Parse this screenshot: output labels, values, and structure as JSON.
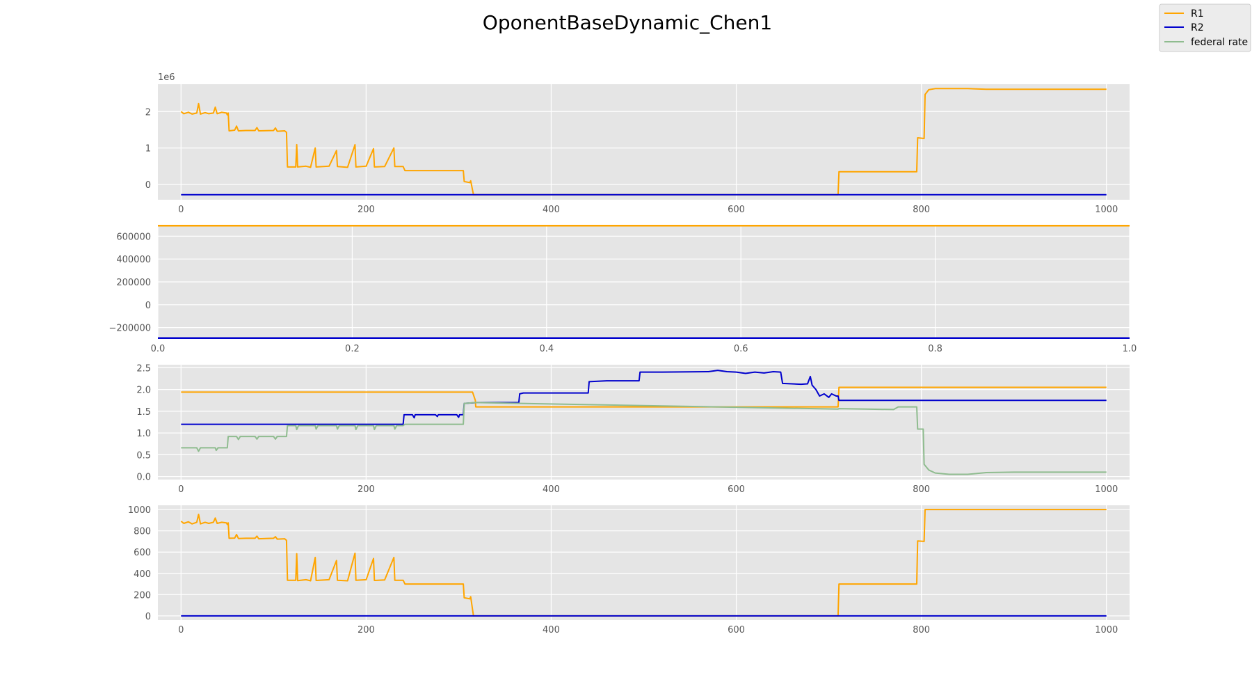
{
  "title": "OponentBaseDynamic_Chen1",
  "legend": [
    {
      "label": "R1",
      "color": "#ffa500"
    },
    {
      "label": "R2",
      "color": "#0000cd"
    },
    {
      "label": "federal rate",
      "color": "#8fbc8f"
    }
  ],
  "chart_data": [
    {
      "type": "line",
      "title": "",
      "offset_label": "1e6",
      "xlim": [
        -25,
        1025
      ],
      "ylim": [
        -0.42,
        2.75
      ],
      "xticks": [
        0,
        200,
        400,
        600,
        800,
        1000
      ],
      "yticks": [
        0,
        1,
        2
      ],
      "series": [
        {
          "name": "R1",
          "color": "#ffa500",
          "points": [
            [
              0,
              2.0
            ],
            [
              3,
              1.94
            ],
            [
              8,
              1.98
            ],
            [
              12,
              1.93
            ],
            [
              17,
              1.96
            ],
            [
              19,
              2.22
            ],
            [
              21,
              1.93
            ],
            [
              26,
              1.97
            ],
            [
              30,
              1.94
            ],
            [
              35,
              1.96
            ],
            [
              37,
              2.12
            ],
            [
              39,
              1.94
            ],
            [
              44,
              1.98
            ],
            [
              49,
              1.96
            ],
            [
              50,
              1.91
            ],
            [
              51,
              1.96
            ],
            [
              52,
              1.47
            ],
            [
              58,
              1.49
            ],
            [
              60,
              1.6
            ],
            [
              62,
              1.47
            ],
            [
              70,
              1.48
            ],
            [
              80,
              1.48
            ],
            [
              82,
              1.56
            ],
            [
              84,
              1.47
            ],
            [
              100,
              1.48
            ],
            [
              102,
              1.55
            ],
            [
              104,
              1.46
            ],
            [
              112,
              1.47
            ],
            [
              114,
              1.43
            ],
            [
              115,
              0.48
            ],
            [
              124,
              0.48
            ],
            [
              125,
              1.09
            ],
            [
              126,
              0.48
            ],
            [
              135,
              0.5
            ],
            [
              140,
              0.47
            ],
            [
              145,
              1.0
            ],
            [
              146,
              0.48
            ],
            [
              160,
              0.5
            ],
            [
              168,
              0.93
            ],
            [
              169,
              0.49
            ],
            [
              180,
              0.47
            ],
            [
              188,
              1.09
            ],
            [
              189,
              0.48
            ],
            [
              200,
              0.5
            ],
            [
              208,
              0.98
            ],
            [
              209,
              0.48
            ],
            [
              220,
              0.49
            ],
            [
              230,
              1.0
            ],
            [
              231,
              0.49
            ],
            [
              240,
              0.49
            ],
            [
              242,
              0.38
            ],
            [
              305,
              0.38
            ],
            [
              306,
              0.08
            ],
            [
              312,
              0.05
            ],
            [
              313,
              0.1
            ],
            [
              316,
              -0.28
            ],
            [
              710,
              -0.28
            ],
            [
              711,
              0.35
            ],
            [
              795,
              0.35
            ],
            [
              796,
              1.28
            ],
            [
              803,
              1.26
            ],
            [
              804,
              2.47
            ],
            [
              808,
              2.6
            ],
            [
              815,
              2.63
            ],
            [
              850,
              2.63
            ],
            [
              870,
              2.61
            ],
            [
              900,
              2.61
            ],
            [
              1000,
              2.61
            ]
          ]
        },
        {
          "name": "R2",
          "color": "#0000cd",
          "points": [
            [
              0,
              -0.28
            ],
            [
              1000,
              -0.28
            ]
          ]
        }
      ]
    },
    {
      "type": "line",
      "title": "",
      "xlim": [
        0,
        1
      ],
      "ylim": [
        -300000,
        700000
      ],
      "xticks": [
        0.0,
        0.2,
        0.4,
        0.6,
        0.8,
        1.0
      ],
      "yticks": [
        -200000,
        0,
        200000,
        400000,
        600000
      ],
      "ytick_labels": [
        "−200000",
        "0",
        "200000",
        "400000",
        "600000"
      ],
      "series": [
        {
          "name": "R1",
          "color": "#ffa500",
          "points": [
            [
              0,
              700000
            ],
            [
              1,
              700000
            ]
          ]
        },
        {
          "name": "R2",
          "color": "#0000cd",
          "points": [
            [
              0,
              -300000
            ],
            [
              1,
              -300000
            ]
          ]
        }
      ]
    },
    {
      "type": "line",
      "title": "",
      "xlim": [
        -25,
        1025
      ],
      "ylim": [
        -0.07,
        2.57
      ],
      "xticks": [
        0,
        200,
        400,
        600,
        800,
        1000
      ],
      "yticks": [
        0.0,
        0.5,
        1.0,
        1.5,
        2.0,
        2.5
      ],
      "series": [
        {
          "name": "R1",
          "color": "#ffa500",
          "points": [
            [
              0,
              1.94
            ],
            [
              315,
              1.94
            ],
            [
              318,
              1.75
            ],
            [
              318.5,
              1.6
            ],
            [
              710,
              1.6
            ],
            [
              711,
              2.05
            ],
            [
              1000,
              2.05
            ]
          ]
        },
        {
          "name": "R2",
          "color": "#0000cd",
          "points": [
            [
              0,
              1.2
            ],
            [
              240,
              1.2
            ],
            [
              241,
              1.42
            ],
            [
              250,
              1.42
            ],
            [
              252,
              1.35
            ],
            [
              253,
              1.42
            ],
            [
              275,
              1.42
            ],
            [
              277,
              1.38
            ],
            [
              278,
              1.42
            ],
            [
              298,
              1.42
            ],
            [
              300,
              1.36
            ],
            [
              301,
              1.42
            ],
            [
              305,
              1.42
            ],
            [
              306,
              1.68
            ],
            [
              320,
              1.7
            ],
            [
              365,
              1.7
            ],
            [
              366,
              1.9
            ],
            [
              370,
              1.92
            ],
            [
              440,
              1.92
            ],
            [
              441,
              2.18
            ],
            [
              460,
              2.2
            ],
            [
              495,
              2.2
            ],
            [
              496,
              2.4
            ],
            [
              520,
              2.4
            ],
            [
              570,
              2.41
            ],
            [
              580,
              2.44
            ],
            [
              590,
              2.41
            ],
            [
              600,
              2.4
            ],
            [
              610,
              2.37
            ],
            [
              620,
              2.4
            ],
            [
              630,
              2.38
            ],
            [
              640,
              2.41
            ],
            [
              648,
              2.4
            ],
            [
              650,
              2.14
            ],
            [
              670,
              2.12
            ],
            [
              677,
              2.13
            ],
            [
              680,
              2.3
            ],
            [
              682,
              2.1
            ],
            [
              686,
              2.0
            ],
            [
              690,
              1.85
            ],
            [
              695,
              1.9
            ],
            [
              700,
              1.82
            ],
            [
              703,
              1.9
            ],
            [
              708,
              1.85
            ],
            [
              710,
              1.85
            ],
            [
              711,
              1.75
            ],
            [
              1000,
              1.75
            ]
          ]
        },
        {
          "name": "federal rate",
          "color": "#8fbc8f",
          "points": [
            [
              0,
              0.66
            ],
            [
              17,
              0.66
            ],
            [
              19,
              0.58
            ],
            [
              21,
              0.66
            ],
            [
              37,
              0.66
            ],
            [
              38,
              0.6
            ],
            [
              40,
              0.66
            ],
            [
              50,
              0.66
            ],
            [
              51,
              0.92
            ],
            [
              60,
              0.92
            ],
            [
              62,
              0.85
            ],
            [
              64,
              0.92
            ],
            [
              80,
              0.92
            ],
            [
              82,
              0.86
            ],
            [
              84,
              0.92
            ],
            [
              100,
              0.92
            ],
            [
              102,
              0.86
            ],
            [
              104,
              0.92
            ],
            [
              114,
              0.92
            ],
            [
              115,
              1.17
            ],
            [
              124,
              1.17
            ],
            [
              125,
              1.08
            ],
            [
              127,
              1.17
            ],
            [
              145,
              1.17
            ],
            [
              146,
              1.09
            ],
            [
              148,
              1.17
            ],
            [
              168,
              1.17
            ],
            [
              169,
              1.09
            ],
            [
              171,
              1.17
            ],
            [
              188,
              1.17
            ],
            [
              189,
              1.08
            ],
            [
              191,
              1.17
            ],
            [
              208,
              1.17
            ],
            [
              209,
              1.08
            ],
            [
              211,
              1.17
            ],
            [
              230,
              1.17
            ],
            [
              231,
              1.09
            ],
            [
              233,
              1.17
            ],
            [
              240,
              1.17
            ],
            [
              242,
              1.2
            ],
            [
              305,
              1.2
            ],
            [
              306,
              1.68
            ],
            [
              318,
              1.7
            ],
            [
              710,
              1.55
            ],
            [
              711,
              1.56
            ],
            [
              740,
              1.55
            ],
            [
              770,
              1.54
            ],
            [
              775,
              1.6
            ],
            [
              795,
              1.6
            ],
            [
              796,
              1.09
            ],
            [
              802,
              1.09
            ],
            [
              803,
              0.28
            ],
            [
              808,
              0.15
            ],
            [
              815,
              0.08
            ],
            [
              830,
              0.05
            ],
            [
              850,
              0.05
            ],
            [
              870,
              0.09
            ],
            [
              900,
              0.1
            ],
            [
              950,
              0.1
            ],
            [
              1000,
              0.1
            ]
          ]
        }
      ]
    },
    {
      "type": "line",
      "title": "",
      "xlim": [
        -25,
        1025
      ],
      "ylim": [
        -40,
        1040
      ],
      "xticks": [
        0,
        200,
        400,
        600,
        800,
        1000
      ],
      "yticks": [
        0,
        200,
        400,
        600,
        800,
        1000
      ],
      "series": [
        {
          "name": "R1",
          "color": "#ffa500",
          "points": [
            [
              0,
              890
            ],
            [
              3,
              870
            ],
            [
              8,
              885
            ],
            [
              12,
              865
            ],
            [
              17,
              880
            ],
            [
              19,
              955
            ],
            [
              21,
              865
            ],
            [
              26,
              880
            ],
            [
              30,
              870
            ],
            [
              35,
              880
            ],
            [
              37,
              920
            ],
            [
              39,
              870
            ],
            [
              44,
              880
            ],
            [
              49,
              875
            ],
            [
              50,
              860
            ],
            [
              51,
              875
            ],
            [
              52,
              730
            ],
            [
              58,
              732
            ],
            [
              60,
              765
            ],
            [
              62,
              728
            ],
            [
              70,
              730
            ],
            [
              80,
              730
            ],
            [
              82,
              750
            ],
            [
              84,
              725
            ],
            [
              100,
              730
            ],
            [
              102,
              745
            ],
            [
              104,
              722
            ],
            [
              112,
              725
            ],
            [
              114,
              710
            ],
            [
              115,
              335
            ],
            [
              124,
              335
            ],
            [
              125,
              585
            ],
            [
              126,
              332
            ],
            [
              135,
              340
            ],
            [
              140,
              330
            ],
            [
              145,
              550
            ],
            [
              146,
              333
            ],
            [
              160,
              340
            ],
            [
              168,
              520
            ],
            [
              169,
              335
            ],
            [
              180,
              330
            ],
            [
              188,
              590
            ],
            [
              189,
              335
            ],
            [
              200,
              340
            ],
            [
              208,
              540
            ],
            [
              209,
              333
            ],
            [
              220,
              338
            ],
            [
              230,
              550
            ],
            [
              231,
              335
            ],
            [
              240,
              335
            ],
            [
              242,
              300
            ],
            [
              305,
              300
            ],
            [
              306,
              170
            ],
            [
              312,
              160
            ],
            [
              313,
              180
            ],
            [
              316,
              0
            ],
            [
              710,
              0
            ],
            [
              711,
              300
            ],
            [
              795,
              300
            ],
            [
              796,
              705
            ],
            [
              803,
              700
            ],
            [
              804,
              1000
            ],
            [
              1000,
              1000
            ]
          ]
        },
        {
          "name": "R2",
          "color": "#0000cd",
          "points": [
            [
              0,
              0
            ],
            [
              1000,
              0
            ]
          ]
        }
      ]
    }
  ]
}
